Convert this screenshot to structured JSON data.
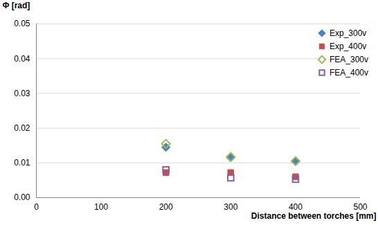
{
  "chart_data": {
    "type": "scatter",
    "x_label": "Distance between torches [mm]",
    "y_label": "Φ [rad]",
    "x": [
      200,
      300,
      400
    ],
    "series": [
      {
        "name": "Exp_300v",
        "color": "#4f81bd",
        "marker": "diamond",
        "values": [
          0.0145,
          0.0115,
          0.0105
        ]
      },
      {
        "name": "Exp_400v",
        "color": "#c0504d",
        "marker": "square",
        "values": [
          0.0072,
          0.0072,
          0.006
        ]
      },
      {
        "name": "FEA_300v",
        "color": "#9bbb59",
        "marker": "diamond-open",
        "values": [
          0.0155,
          0.0117,
          0.0105
        ]
      },
      {
        "name": "FEA_400v",
        "color": "#8064a2",
        "marker": "square-open",
        "values": [
          0.008,
          0.0057,
          0.0053
        ]
      }
    ],
    "xlim": [
      0,
      500
    ],
    "xticks": [
      0,
      100,
      200,
      300,
      400,
      500
    ],
    "ylim": [
      0,
      0.05
    ],
    "yticks": [
      {
        "value": 0,
        "label": "0.00"
      },
      {
        "value": 0.01,
        "label": "0.01"
      },
      {
        "value": 0.02,
        "label": "0.02"
      },
      {
        "value": 0.03,
        "label": "0.03"
      },
      {
        "value": 0.04,
        "label": "0.04"
      },
      {
        "value": 0.05,
        "label": "0.05"
      }
    ],
    "grid": true,
    "legend": "top-right"
  }
}
